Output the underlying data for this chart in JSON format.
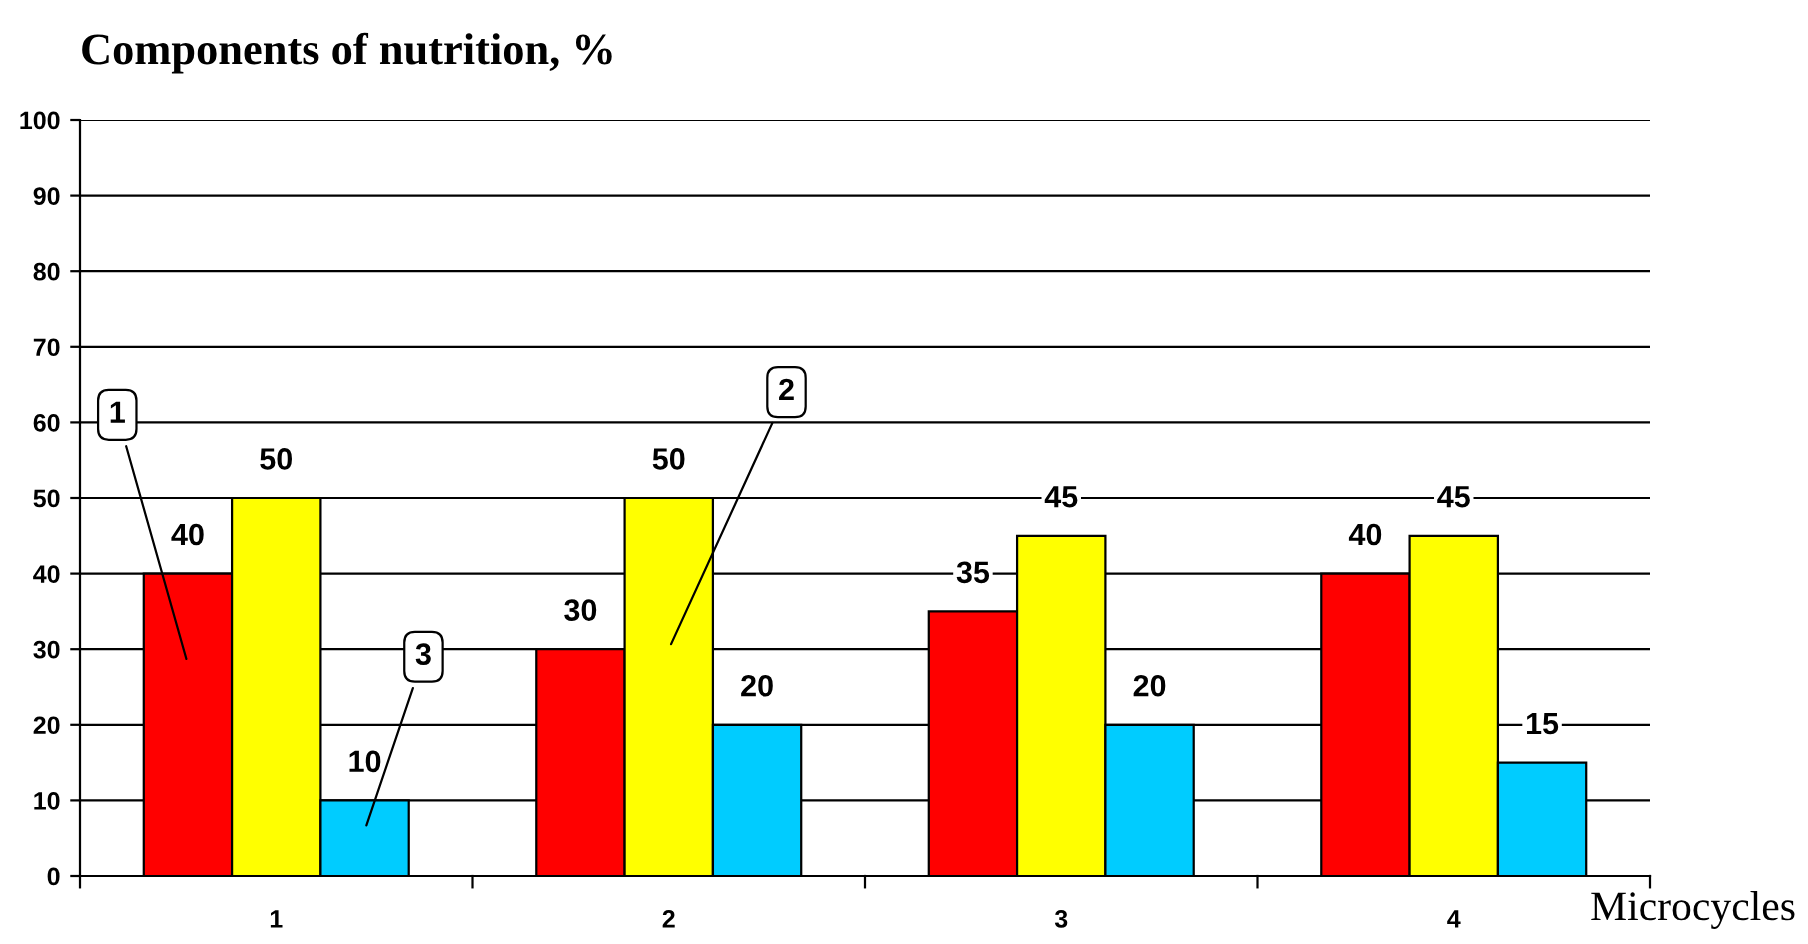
{
  "chart_data": {
    "type": "bar",
    "title": "Components of nutrition, %",
    "xlabel": "Microcycles",
    "categories": [
      "1",
      "2",
      "3",
      "4"
    ],
    "series": [
      {
        "color": "#ff0000",
        "values": [
          40,
          30,
          35,
          40
        ]
      },
      {
        "color": "#ffff00",
        "values": [
          50,
          50,
          45,
          45
        ]
      },
      {
        "color": "#00ccff",
        "values": [
          10,
          20,
          20,
          15
        ]
      }
    ],
    "ylim": [
      0,
      100
    ],
    "yticks": [
      0,
      10,
      20,
      30,
      40,
      50,
      60,
      70,
      80,
      90,
      100
    ],
    "grid": "y",
    "data_labels": true,
    "annotations": [
      "1",
      "2",
      "3"
    ]
  }
}
